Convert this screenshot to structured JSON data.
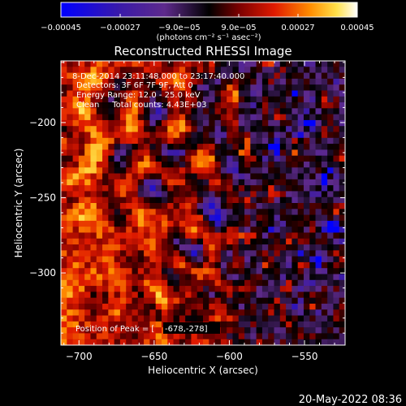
{
  "chart_data": {
    "type": "heatmap",
    "title": "Reconstructed RHESSI Image",
    "xlabel": "Heliocentric X (arcsec)",
    "ylabel": "Heliocentric Y (arcsec)",
    "xlim": [
      -712,
      -523
    ],
    "ylim": [
      -348,
      -159
    ],
    "x_ticks": [
      -700,
      -650,
      -600,
      -550
    ],
    "y_ticks": [
      -200,
      -250,
      -300
    ],
    "colorbar": {
      "ticks": [
        -0.00045,
        -0.00027,
        -9e-05,
        9e-05,
        0.00027,
        0.00045
      ],
      "tick_labels": [
        "-0.00045",
        "-0.00027",
        "-9.0e-05",
        "9.0e-05",
        "0.00027",
        "0.00045"
      ],
      "unit_label": "(photons cm⁻² s⁻¹ asec⁻²)",
      "range": [
        -0.00045,
        0.00045
      ]
    },
    "annotations": [
      "8-Dec-2014 23:11:48.000 to 23:17:40.000",
      "Detectors: 3F 6F 7F 9F, Att 0",
      "Energy Range: 12.0 - 25.0 keV",
      "Clean     Total counts: 4.43E+03"
    ],
    "peak_label": "Position of Peak = [",
    "peak_value": "-678,-278]",
    "peak_position": [
      -678,
      -278
    ],
    "total_counts": 4430,
    "colormap": [
      "#0000ff",
      "#3a1aa8",
      "#5e2a8c",
      "#000000",
      "#7a0000",
      "#e01a00",
      "#ff8c00",
      "#ffe14a",
      "#ffffff"
    ],
    "image_grid": {
      "rows": 48,
      "cols": 48
    }
  },
  "footer": {
    "timestamp": "20-May-2022 08:36"
  }
}
